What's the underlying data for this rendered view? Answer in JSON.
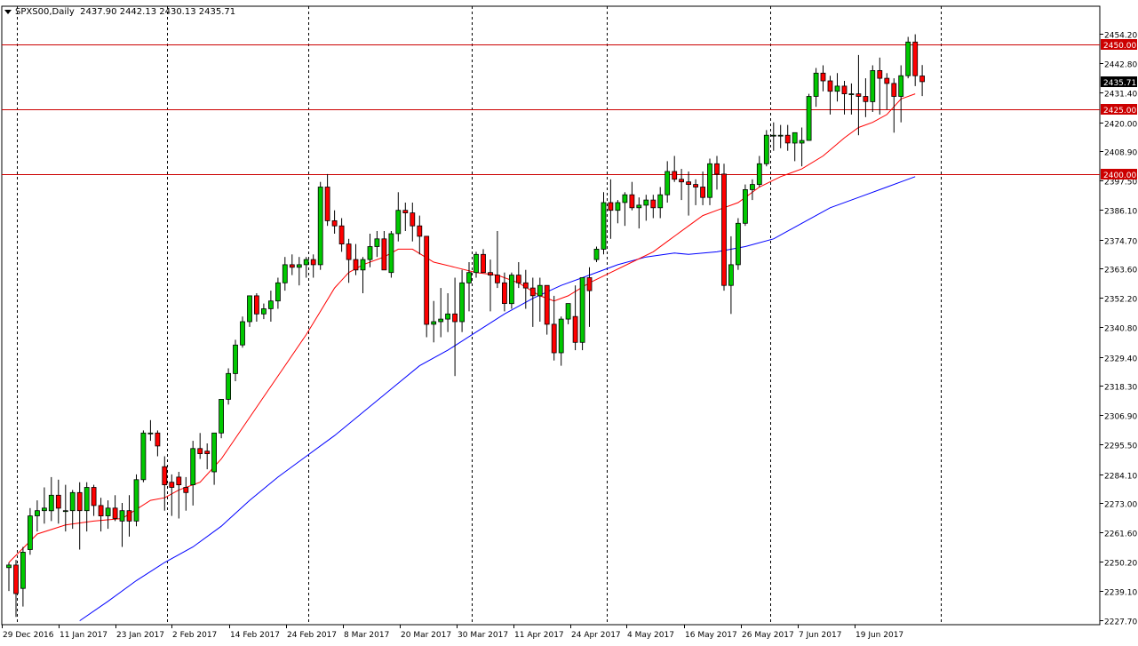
{
  "header": {
    "symbol": "SPXS00",
    "timeframe": "Daily",
    "ohlc": "2437.90 2442.13 2430.13 2435.71"
  },
  "chart_data": {
    "type": "candlestick",
    "title": "SPXS00,Daily 2437.90 2442.13 2430.13 2435.71",
    "ylim": [
      2227.7,
      2458.5
    ],
    "y_ticks": [
      2454.2,
      2442.8,
      2431.4,
      2420.0,
      2408.9,
      2397.5,
      2386.1,
      2374.7,
      2363.6,
      2352.2,
      2340.8,
      2329.4,
      2318.3,
      2306.9,
      2295.5,
      2284.1,
      2273.0,
      2261.6,
      2250.2,
      2239.1,
      2227.7
    ],
    "x_ticks": [
      "29 Dec 2016",
      "11 Jan 2017",
      "23 Jan 2017",
      "2 Feb 2017",
      "14 Feb 2017",
      "24 Feb 2017",
      "8 Mar 2017",
      "20 Mar 2017",
      "30 Mar 2017",
      "11 Apr 2017",
      "24 Apr 2017",
      "4 May 2017",
      "16 May 2017",
      "26 May 2017",
      "7 Jun 2017",
      "19 Jun 2017"
    ],
    "x_tick_index": [
      0,
      8,
      16,
      24,
      32,
      40,
      48,
      56,
      64,
      72,
      80,
      88,
      96,
      104,
      112,
      120
    ],
    "vline_index": [
      2,
      23,
      43,
      65,
      85,
      108,
      131
    ],
    "current_price": "2435.71",
    "hlines": [
      {
        "value": 2450.0,
        "label": "2450.00"
      },
      {
        "value": 2425.0,
        "label": "2425.00"
      },
      {
        "value": 2400.0,
        "label": "2400.00"
      }
    ],
    "candles": [
      [
        2248.0,
        2250.0,
        2239.0,
        2249.0
      ],
      [
        2249.0,
        2251.0,
        2229.0,
        2238.0
      ],
      [
        2240.0,
        2256.0,
        2233.0,
        2254.0
      ],
      [
        2255.0,
        2271.0,
        2253.0,
        2268.0
      ],
      [
        2268.0,
        2274.0,
        2262.0,
        2270.0
      ],
      [
        2270.0,
        2279.0,
        2265.0,
        2271.0
      ],
      [
        2270.0,
        2283.0,
        2266.0,
        2276.0
      ],
      [
        2276.0,
        2282.0,
        2265.0,
        2271.0
      ],
      [
        2270.0,
        2280.0,
        2262.0,
        2270.0
      ],
      [
        2270.0,
        2278.0,
        2263.0,
        2277.0
      ],
      [
        2277.0,
        2281.0,
        2255.0,
        2270.0
      ],
      [
        2270.0,
        2281.0,
        2262.0,
        2279.0
      ],
      [
        2279.0,
        2280.0,
        2268.0,
        2272.0
      ],
      [
        2272.0,
        2275.0,
        2262.0,
        2268.0
      ],
      [
        2268.0,
        2274.0,
        2263.0,
        2271.0
      ],
      [
        2271.0,
        2276.0,
        2266.0,
        2267.0
      ],
      [
        2266.0,
        2273.0,
        2256.0,
        2270.0
      ],
      [
        2270.0,
        2276.0,
        2260.0,
        2266.0
      ],
      [
        2266.0,
        2284.0,
        2264.0,
        2282.0
      ],
      [
        2282.0,
        2301.0,
        2281.0,
        2300.0
      ],
      [
        2300.0,
        2305.0,
        2297.0,
        2300.0
      ],
      [
        2300.0,
        2301.0,
        2291.0,
        2295.0
      ],
      [
        2287.0,
        2291.0,
        2270.0,
        2280.0
      ],
      [
        2281.0,
        2284.0,
        2268.0,
        2279.0
      ],
      [
        2283.0,
        2285.0,
        2267.0,
        2280.0
      ],
      [
        2279.0,
        2283.0,
        2270.0,
        2277.0
      ],
      [
        2280.0,
        2297.0,
        2272.0,
        2294.0
      ],
      [
        2294.0,
        2300.0,
        2290.0,
        2292.0
      ],
      [
        2293.0,
        2296.0,
        2286.0,
        2292.0
      ],
      [
        2285.0,
        2300.0,
        2280.0,
        2300.0
      ],
      [
        2300.0,
        2312.0,
        2298.0,
        2313.0
      ],
      [
        2313.0,
        2325.0,
        2311.0,
        2323.0
      ],
      [
        2323.0,
        2336.0,
        2320.0,
        2334.0
      ],
      [
        2334.0,
        2345.0,
        2333.0,
        2343.0
      ],
      [
        2343.0,
        2353.0,
        2341.0,
        2353.0
      ],
      [
        2353.0,
        2354.0,
        2343.0,
        2346.0
      ],
      [
        2346.0,
        2350.0,
        2344.0,
        2348.0
      ],
      [
        2348.0,
        2355.0,
        2343.0,
        2351.0
      ],
      [
        2351.0,
        2360.0,
        2348.0,
        2358.0
      ],
      [
        2358.0,
        2368.0,
        2355.0,
        2365.0
      ],
      [
        2365.0,
        2369.0,
        2361.0,
        2364.0
      ],
      [
        2364.0,
        2368.0,
        2357.0,
        2365.0
      ],
      [
        2365.0,
        2368.0,
        2360.0,
        2367.0
      ],
      [
        2367.0,
        2369.0,
        2360.0,
        2365.0
      ],
      [
        2365.0,
        2397.0,
        2363.0,
        2395.0
      ],
      [
        2395.0,
        2400.0,
        2380.0,
        2382.0
      ],
      [
        2382.0,
        2386.0,
        2377.0,
        2380.0
      ],
      [
        2380.0,
        2383.0,
        2370.0,
        2373.0
      ],
      [
        2373.0,
        2375.0,
        2358.0,
        2367.0
      ],
      [
        2367.0,
        2373.0,
        2361.0,
        2363.0
      ],
      [
        2363.0,
        2368.0,
        2354.0,
        2367.0
      ],
      [
        2367.0,
        2377.0,
        2364.0,
        2372.0
      ],
      [
        2372.0,
        2378.0,
        2368.0,
        2375.0
      ],
      [
        2375.0,
        2378.0,
        2365.0,
        2363.0
      ],
      [
        2362.0,
        2378.0,
        2360.0,
        2377.0
      ],
      [
        2377.0,
        2393.0,
        2374.0,
        2386.0
      ],
      [
        2386.0,
        2389.0,
        2378.0,
        2385.0
      ],
      [
        2385.0,
        2389.0,
        2374.0,
        2380.0
      ],
      [
        2380.0,
        2384.0,
        2369.0,
        2376.0
      ],
      [
        2376.0,
        2376.0,
        2337.0,
        2342.0
      ],
      [
        2342.0,
        2351.0,
        2335.0,
        2343.0
      ],
      [
        2343.0,
        2356.0,
        2337.0,
        2344.0
      ],
      [
        2344.0,
        2354.0,
        2339.0,
        2346.0
      ],
      [
        2346.0,
        2360.0,
        2322.0,
        2343.0
      ],
      [
        2343.0,
        2363.0,
        2339.0,
        2358.0
      ],
      [
        2358.0,
        2366.0,
        2347.0,
        2362.0
      ],
      [
        2362.0,
        2370.0,
        2360.0,
        2369.0
      ],
      [
        2369.0,
        2371.0,
        2363.0,
        2362.0
      ],
      [
        2362.0,
        2367.0,
        2347.0,
        2361.0
      ],
      [
        2361.0,
        2378.0,
        2356.0,
        2358.0
      ],
      [
        2358.0,
        2362.0,
        2347.0,
        2350.0
      ],
      [
        2350.0,
        2362.0,
        2348.0,
        2361.0
      ],
      [
        2361.0,
        2366.0,
        2356.0,
        2358.0
      ],
      [
        2358.0,
        2363.0,
        2348.0,
        2356.0
      ],
      [
        2356.0,
        2360.0,
        2341.0,
        2353.0
      ],
      [
        2353.0,
        2360.0,
        2343.0,
        2357.0
      ],
      [
        2357.0,
        2357.0,
        2338.0,
        2342.0
      ],
      [
        2342.0,
        2353.0,
        2328.0,
        2331.0
      ],
      [
        2331.0,
        2345.0,
        2326.0,
        2344.0
      ],
      [
        2344.0,
        2349.0,
        2342.0,
        2350.0
      ],
      [
        2345.0,
        2357.0,
        2332.0,
        2335.0
      ],
      [
        2335.0,
        2360.0,
        2332.0,
        2360.0
      ],
      [
        2360.0,
        2364.0,
        2341.0,
        2355.0
      ],
      [
        2367.0,
        2372.0,
        2366.0,
        2371.0
      ],
      [
        2371.0,
        2393.0,
        2369.0,
        2389.0
      ],
      [
        2389.0,
        2398.0,
        2375.0,
        2386.0
      ],
      [
        2386.0,
        2390.0,
        2381.0,
        2389.0
      ],
      [
        2389.0,
        2393.0,
        2380.0,
        2392.0
      ],
      [
        2392.0,
        2397.0,
        2386.0,
        2387.0
      ],
      [
        2387.0,
        2391.0,
        2379.0,
        2388.0
      ],
      [
        2388.0,
        2392.0,
        2382.0,
        2390.0
      ],
      [
        2390.0,
        2392.0,
        2383.0,
        2387.0
      ],
      [
        2387.0,
        2395.0,
        2383.0,
        2392.0
      ],
      [
        2392.0,
        2405.0,
        2389.0,
        2401.0
      ],
      [
        2401.0,
        2407.0,
        2397.0,
        2398.0
      ],
      [
        2398.0,
        2402.0,
        2390.0,
        2397.0
      ],
      [
        2397.0,
        2401.0,
        2384.0,
        2396.0
      ],
      [
        2396.0,
        2398.0,
        2388.0,
        2395.0
      ],
      [
        2395.0,
        2401.0,
        2388.0,
        2391.0
      ],
      [
        2391.0,
        2406.0,
        2388.0,
        2404.0
      ],
      [
        2404.0,
        2407.0,
        2394.0,
        2400.0
      ],
      [
        2400.0,
        2404.0,
        2355.0,
        2357.0
      ],
      [
        2357.0,
        2376.0,
        2346.0,
        2365.0
      ],
      [
        2365.0,
        2383.0,
        2363.0,
        2381.0
      ],
      [
        2381.0,
        2396.0,
        2380.0,
        2394.0
      ],
      [
        2394.0,
        2398.0,
        2390.0,
        2396.0
      ],
      [
        2396.0,
        2407.0,
        2395.0,
        2404.0
      ],
      [
        2404.0,
        2417.0,
        2403.0,
        2415.0
      ],
      [
        2415.0,
        2420.0,
        2409.0,
        2415.0
      ],
      [
        2415.0,
        2419.0,
        2410.0,
        2415.0
      ],
      [
        2415.0,
        2419.0,
        2409.0,
        2412.0
      ],
      [
        2412.0,
        2416.0,
        2405.0,
        2416.0
      ],
      [
        2412.0,
        2418.0,
        2403.0,
        2413.0
      ],
      [
        2413.0,
        2431.0,
        2413.0,
        2430.0
      ],
      [
        2430.0,
        2441.0,
        2426.0,
        2439.0
      ],
      [
        2439.0,
        2442.0,
        2432.0,
        2436.0
      ],
      [
        2436.0,
        2438.0,
        2423.0,
        2432.0
      ],
      [
        2432.0,
        2439.0,
        2428.0,
        2434.0
      ],
      [
        2434.0,
        2436.0,
        2423.0,
        2431.0
      ],
      [
        2431.0,
        2435.0,
        2423.0,
        2431.0
      ],
      [
        2431.0,
        2446.0,
        2415.0,
        2430.0
      ],
      [
        2430.0,
        2437.0,
        2422.0,
        2428.0
      ],
      [
        2428.0,
        2442.0,
        2424.0,
        2440.0
      ],
      [
        2440.0,
        2445.0,
        2423.0,
        2437.0
      ],
      [
        2437.0,
        2439.0,
        2425.0,
        2435.0
      ],
      [
        2435.0,
        2437.0,
        2416.0,
        2430.0
      ],
      [
        2430.0,
        2442.0,
        2420.0,
        2438.0
      ],
      [
        2438.0,
        2453.0,
        2437.0,
        2451.0
      ],
      [
        2451.0,
        2454.0,
        2434.0,
        2438.0
      ],
      [
        2437.9,
        2442.13,
        2430.13,
        2435.71
      ]
    ],
    "ma_fast": [
      [
        0,
        2250.0
      ],
      [
        4,
        2261.0
      ],
      [
        8,
        2264.5
      ],
      [
        12,
        2266.0
      ],
      [
        16,
        2267.0
      ],
      [
        20,
        2274.0
      ],
      [
        22,
        2275.0
      ],
      [
        24,
        2278.0
      ],
      [
        27,
        2281.0
      ],
      [
        30,
        2290.0
      ],
      [
        33,
        2302.0
      ],
      [
        36,
        2314.0
      ],
      [
        39,
        2326.0
      ],
      [
        42,
        2338.0
      ],
      [
        44,
        2347.0
      ],
      [
        46,
        2356.0
      ],
      [
        48,
        2362.0
      ],
      [
        50,
        2365.0
      ],
      [
        53,
        2368.0
      ],
      [
        55,
        2371.0
      ],
      [
        57,
        2371.0
      ],
      [
        60,
        2366.0
      ],
      [
        63,
        2364.0
      ],
      [
        66,
        2362.0
      ],
      [
        69,
        2361.0
      ],
      [
        72,
        2358.0
      ],
      [
        75,
        2353.0
      ],
      [
        77,
        2351.0
      ],
      [
        79,
        2353.0
      ],
      [
        82,
        2358.0
      ],
      [
        85,
        2362.0
      ],
      [
        88,
        2366.0
      ],
      [
        91,
        2370.0
      ],
      [
        93,
        2374.0
      ],
      [
        96,
        2380.0
      ],
      [
        98,
        2384.0
      ],
      [
        100,
        2386.0
      ],
      [
        103,
        2389.0
      ],
      [
        106,
        2395.0
      ],
      [
        109,
        2399.0
      ],
      [
        112,
        2402.0
      ],
      [
        115,
        2407.0
      ],
      [
        118,
        2414.0
      ],
      [
        120,
        2418.0
      ],
      [
        122,
        2420.0
      ],
      [
        124,
        2423.0
      ],
      [
        126,
        2429.0
      ],
      [
        128,
        2431.0
      ]
    ],
    "ma_slow": [
      [
        10,
        2227.5
      ],
      [
        14,
        2235.0
      ],
      [
        18,
        2243.0
      ],
      [
        22,
        2250.0
      ],
      [
        26,
        2256.0
      ],
      [
        30,
        2264.0
      ],
      [
        34,
        2274.0
      ],
      [
        38,
        2283.0
      ],
      [
        42,
        2291.0
      ],
      [
        46,
        2299.0
      ],
      [
        50,
        2308.0
      ],
      [
        54,
        2317.0
      ],
      [
        58,
        2326.0
      ],
      [
        62,
        2332.0
      ],
      [
        66,
        2339.0
      ],
      [
        70,
        2346.0
      ],
      [
        74,
        2352.0
      ],
      [
        78,
        2357.0
      ],
      [
        82,
        2361.0
      ],
      [
        86,
        2365.0
      ],
      [
        90,
        2368.0
      ],
      [
        94,
        2369.5
      ],
      [
        96,
        2369.0
      ],
      [
        100,
        2370.0
      ],
      [
        104,
        2372.0
      ],
      [
        108,
        2375.0
      ],
      [
        112,
        2381.0
      ],
      [
        116,
        2387.0
      ],
      [
        120,
        2391.0
      ],
      [
        124,
        2395.0
      ],
      [
        128,
        2399.0
      ]
    ],
    "colors": {
      "bull": "#00c800",
      "bear": "#ff0000",
      "ma_fast": "#ff0000",
      "ma_slow": "#0000ff",
      "hline": "#cc0000",
      "grid": "#000000"
    }
  }
}
